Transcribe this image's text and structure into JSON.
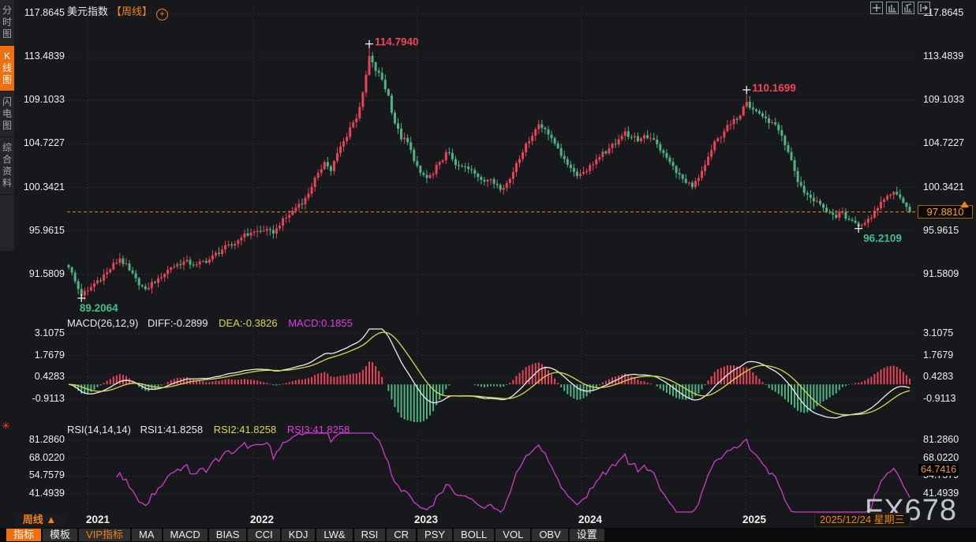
{
  "window": {
    "title": "美元指数",
    "period_tag": "【周线】",
    "expand_icon": "+"
  },
  "sidebar": {
    "items": [
      {
        "label": "分时图",
        "active": false
      },
      {
        "label": "K线图",
        "active": true
      },
      {
        "label": "闪电图",
        "active": false
      },
      {
        "label": "综合资料",
        "active": false
      }
    ]
  },
  "top_right_icons": [
    "crosshair-icon",
    "panel-candles-icon",
    "panel-indicator-icon",
    "shift-right-icon"
  ],
  "colors": {
    "up": "#e84357",
    "down": "#4db584",
    "accent_orange": "#f08418",
    "diff_line": "#ececec",
    "dea_line": "#d9d94c",
    "rsi_line": "#cf3ccf",
    "annotation_high": "#f4445a",
    "annotation_low": "#3fbf8f",
    "grid": "#3b3b41"
  },
  "chart_data": {
    "type": "candlestick",
    "title": "美元指数 周线 (US Dollar Index, weekly)",
    "legend_position": "top-left",
    "grid": true,
    "x_axis_years": [
      "2021",
      "2022",
      "2023",
      "2024",
      "2025"
    ],
    "main_axis_ticks": [
      "117.8645",
      "113.4839",
      "109.1033",
      "104.7227",
      "100.3421",
      "95.9615",
      "91.5809"
    ],
    "main_axis_range": [
      89.0,
      118.5
    ],
    "weeks_total": 264,
    "weekly_close_anchors": [
      [
        0,
        92.3
      ],
      [
        2,
        90.9
      ],
      [
        4,
        89.4
      ],
      [
        6,
        90.0
      ],
      [
        9,
        91.0
      ],
      [
        12,
        91.8
      ],
      [
        16,
        93.2
      ],
      [
        19,
        92.0
      ],
      [
        22,
        90.5
      ],
      [
        24,
        90.1
      ],
      [
        28,
        91.2
      ],
      [
        32,
        92.3
      ],
      [
        36,
        92.9
      ],
      [
        40,
        92.6
      ],
      [
        44,
        93.1
      ],
      [
        48,
        94.1
      ],
      [
        51,
        94.5
      ],
      [
        54,
        95.3
      ],
      [
        57,
        95.8
      ],
      [
        61,
        96.0
      ],
      [
        64,
        95.7
      ],
      [
        66,
        96.5
      ],
      [
        68,
        97.3
      ],
      [
        70,
        98.0
      ],
      [
        72,
        98.7
      ],
      [
        74,
        99.3
      ],
      [
        76,
        100.4
      ],
      [
        78,
        101.8
      ],
      [
        80,
        102.9
      ],
      [
        82,
        102.0
      ],
      [
        84,
        103.8
      ],
      [
        86,
        105.0
      ],
      [
        88,
        106.4
      ],
      [
        90,
        107.3
      ],
      [
        92,
        109.9
      ],
      [
        94,
        113.3
      ],
      [
        96,
        112.1
      ],
      [
        98,
        111.2
      ],
      [
        100,
        109.6
      ],
      [
        102,
        106.8
      ],
      [
        104,
        105.2
      ],
      [
        106,
        104.9
      ],
      [
        108,
        103.0
      ],
      [
        110,
        101.8
      ],
      [
        112,
        101.3
      ],
      [
        114,
        101.7
      ],
      [
        116,
        102.9
      ],
      [
        118,
        103.9
      ],
      [
        120,
        103.2
      ],
      [
        122,
        102.5
      ],
      [
        125,
        102.2
      ],
      [
        128,
        101.4
      ],
      [
        131,
        101.1
      ],
      [
        134,
        100.6
      ],
      [
        136,
        100.3
      ],
      [
        138,
        101.2
      ],
      [
        140,
        102.8
      ],
      [
        143,
        104.8
      ],
      [
        146,
        106.2
      ],
      [
        147,
        106.7
      ],
      [
        149,
        106.2
      ],
      [
        151,
        105.3
      ],
      [
        153,
        104.3
      ],
      [
        155,
        103.2
      ],
      [
        157,
        102.3
      ],
      [
        159,
        101.5
      ],
      [
        161,
        101.9
      ],
      [
        163,
        102.6
      ],
      [
        166,
        103.4
      ],
      [
        169,
        104.3
      ],
      [
        172,
        105.2
      ],
      [
        174,
        106.0
      ],
      [
        176,
        105.4
      ],
      [
        178,
        105.0
      ],
      [
        180,
        105.6
      ],
      [
        182,
        105.3
      ],
      [
        184,
        104.7
      ],
      [
        186,
        103.8
      ],
      [
        188,
        102.9
      ],
      [
        190,
        101.8
      ],
      [
        193,
        100.8
      ],
      [
        195,
        100.4
      ],
      [
        197,
        101.3
      ],
      [
        199,
        102.6
      ],
      [
        201,
        104.1
      ],
      [
        203,
        105.3
      ],
      [
        205,
        106.0
      ],
      [
        207,
        106.7
      ],
      [
        209,
        107.2
      ],
      [
        211,
        108.5
      ],
      [
        212,
        108.9
      ],
      [
        214,
        108.2
      ],
      [
        216,
        107.8
      ],
      [
        218,
        107.3
      ],
      [
        220,
        106.9
      ],
      [
        222,
        106.1
      ],
      [
        224,
        104.6
      ],
      [
        226,
        103.1
      ],
      [
        228,
        100.9
      ],
      [
        230,
        99.8
      ],
      [
        232,
        99.3
      ],
      [
        234,
        99.0
      ],
      [
        236,
        98.3
      ],
      [
        238,
        97.8
      ],
      [
        240,
        97.3
      ],
      [
        242,
        97.9
      ],
      [
        244,
        97.1
      ],
      [
        246,
        96.8
      ],
      [
        247,
        96.5
      ],
      [
        250,
        97.2
      ],
      [
        252,
        98.0
      ],
      [
        254,
        98.9
      ],
      [
        256,
        99.5
      ],
      [
        258,
        99.9
      ],
      [
        260,
        99.3
      ],
      [
        262,
        98.4
      ],
      [
        263,
        97.88
      ]
    ],
    "extremes": [
      {
        "week": 94,
        "kind": "high",
        "value": 114.794,
        "label": "114.7940"
      },
      {
        "week": 212,
        "kind": "high",
        "value": 110.1699,
        "label": "110.1699"
      },
      {
        "week": 4,
        "kind": "low",
        "value": 89.2064,
        "label": "89.2064"
      },
      {
        "week": 247,
        "kind": "low",
        "value": 96.2109,
        "label": "96.2109"
      }
    ],
    "last_price": "97.8810",
    "macd": {
      "name": "MACD(26,12,9)",
      "diff_label": "DIFF:-0.2899",
      "dea_label": "DEA:-0.3826",
      "macd_label": "MACD:0.1855",
      "axis_ticks": [
        "3.1075",
        "1.7679",
        "0.4283",
        "-0.9113"
      ]
    },
    "rsi": {
      "name": "RSI(14,14,14)",
      "rsi1_label": "RSI1:41.8258",
      "rsi2_label": "RSI2:41.8258",
      "rsi3_label": "RSI3:41.8258",
      "axis_ticks": [
        "81.2860",
        "68.0220",
        "54.7579",
        "41.4939"
      ],
      "right_tag": "64.7416"
    }
  },
  "bottom": {
    "period_label": "周线",
    "period_arrow": "▲",
    "years": [
      "2021",
      "2022",
      "2023",
      "2024",
      "2025"
    ],
    "date_label": "2025/12/24 星期三",
    "toolbar": [
      {
        "label": "指标",
        "active": true
      },
      {
        "label": "模板"
      },
      {
        "label": "VIP指标",
        "vip": true
      },
      {
        "label": "MA"
      },
      {
        "label": "MACD"
      },
      {
        "label": "BIAS"
      },
      {
        "label": "CCI"
      },
      {
        "label": "KDJ"
      },
      {
        "label": "LW&"
      },
      {
        "label": "RSI"
      },
      {
        "label": "CR"
      },
      {
        "label": "PSY"
      },
      {
        "label": "BOLL"
      },
      {
        "label": "VOL"
      },
      {
        "label": "OBV"
      },
      {
        "label": "设置"
      }
    ]
  },
  "watermark": "FX678"
}
